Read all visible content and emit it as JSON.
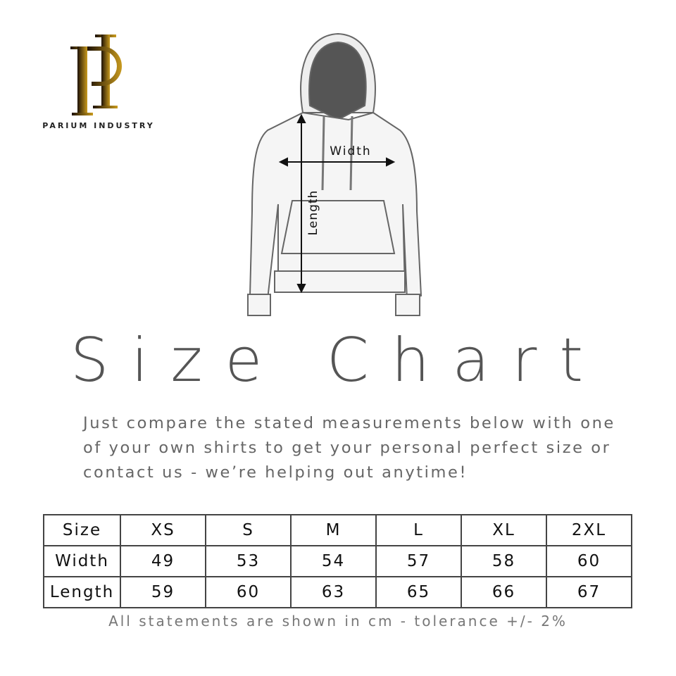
{
  "brand": {
    "monogram": "PI",
    "name": "PARIUM INDUSTRY",
    "colors": {
      "gold": "#b8860b",
      "dark": "#2a1a05"
    }
  },
  "diagram": {
    "width_label": "Width",
    "length_label": "Length"
  },
  "title": "Size Chart",
  "description": "Just compare the stated measurements below with one of your own shirts to get your personal perfect size or contact us - we’re helping out anytime!",
  "table": {
    "header": [
      "Size",
      "XS",
      "S",
      "M",
      "L",
      "XL",
      "2XL"
    ],
    "rows": [
      [
        "Width",
        "49",
        "53",
        "54",
        "57",
        "58",
        "60"
      ],
      [
        "Length",
        "59",
        "60",
        "63",
        "65",
        "66",
        "67"
      ]
    ]
  },
  "note": "All statements are shown in cm - tolerance +/- 2%"
}
